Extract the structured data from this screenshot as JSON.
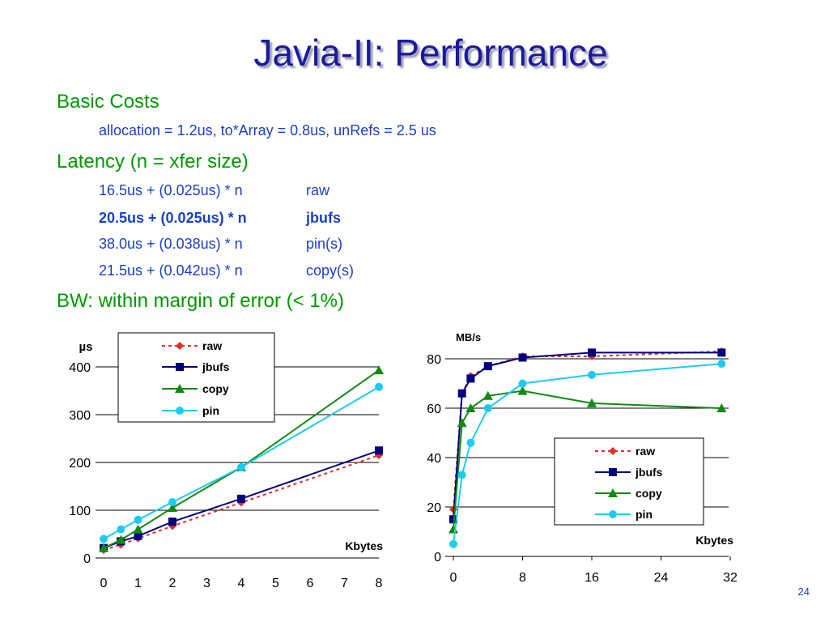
{
  "slide": {
    "title": "Javia-II: Performance",
    "page_number": "24",
    "basic_costs_heading": "Basic Costs",
    "basic_costs_detail": "allocation = 1.2us, to*Array = 0.8us, unRefs = 2.5 us",
    "latency_heading": "Latency (n = xfer size)",
    "latency_rows": [
      {
        "formula": "16.5us + (0.025us) * n",
        "label": "raw",
        "bold": false
      },
      {
        "formula": "20.5us + (0.025us) * n",
        "label": "jbufs",
        "bold": true
      },
      {
        "formula": "38.0us + (0.038us) * n",
        "label": "pin(s)",
        "bold": false
      },
      {
        "formula": "21.5us + (0.042us) * n",
        "label": "copy(s)",
        "bold": false
      }
    ],
    "bw_heading": "BW: within margin of error (< 1%)"
  },
  "colors": {
    "title": "#1a1a9e",
    "heading": "#009900",
    "sub": "#1a3fc8",
    "raw": "#e0302a",
    "jbufs": "#00007f",
    "copy": "#118a11",
    "pin": "#1ecbf0"
  },
  "chart_data": [
    {
      "type": "line",
      "ylabel": "µs",
      "xlabel": "Kbytes",
      "xlim": [
        0,
        8
      ],
      "ylim": [
        0,
        400
      ],
      "x_ticks": [
        0,
        1,
        2,
        3,
        4,
        5,
        6,
        7,
        8
      ],
      "y_ticks": [
        0,
        100,
        200,
        300,
        400
      ],
      "grid": "horizontal",
      "legend": "top-left",
      "series": [
        {
          "name": "raw",
          "key": "raw",
          "marker": "diamond",
          "dashed": true,
          "x": [
            0,
            0.5,
            1,
            2,
            4,
            8
          ],
          "y": [
            17,
            28,
            41,
            67,
            116,
            215
          ]
        },
        {
          "name": "jbufs",
          "key": "jbufs",
          "marker": "square",
          "dashed": false,
          "x": [
            0,
            0.5,
            1,
            2,
            4,
            8
          ],
          "y": [
            21,
            35,
            46,
            76,
            124,
            225
          ]
        },
        {
          "name": "copy",
          "key": "copy",
          "marker": "triangle",
          "dashed": false,
          "x": [
            0,
            0.5,
            1,
            2,
            4,
            8
          ],
          "y": [
            21,
            38,
            60,
            105,
            190,
            393
          ]
        },
        {
          "name": "pin",
          "key": "pin",
          "marker": "circle",
          "dashed": false,
          "x": [
            0,
            0.5,
            1,
            2,
            4,
            8
          ],
          "y": [
            40,
            60,
            80,
            117,
            190,
            358
          ]
        }
      ]
    },
    {
      "type": "line",
      "ylabel": "MB/s",
      "xlabel": "Kbytes",
      "xlim": [
        0,
        32
      ],
      "ylim": [
        0,
        85
      ],
      "x_ticks": [
        0,
        8,
        16,
        24,
        32
      ],
      "y_ticks": [
        0,
        20,
        40,
        60,
        80
      ],
      "grid": "horizontal",
      "legend": "bottom-right",
      "series": [
        {
          "name": "raw",
          "key": "raw",
          "marker": "diamond",
          "dashed": true,
          "x": [
            0,
            1,
            2,
            4,
            8,
            16,
            31
          ],
          "y": [
            19,
            66,
            73,
            77,
            81,
            81,
            83
          ]
        },
        {
          "name": "jbufs",
          "key": "jbufs",
          "marker": "square",
          "dashed": false,
          "x": [
            0,
            1,
            2,
            4,
            8,
            16,
            31
          ],
          "y": [
            15,
            66,
            72,
            77,
            80.5,
            82.5,
            82.5
          ]
        },
        {
          "name": "copy",
          "key": "copy",
          "marker": "triangle",
          "dashed": false,
          "x": [
            0,
            1,
            2,
            4,
            8,
            16,
            31
          ],
          "y": [
            11,
            54,
            60,
            65,
            67,
            62,
            60
          ]
        },
        {
          "name": "pin",
          "key": "pin",
          "marker": "circle",
          "dashed": false,
          "x": [
            0,
            1,
            2,
            4,
            8,
            16,
            31
          ],
          "y": [
            5,
            33,
            46,
            60,
            70,
            73.5,
            78
          ]
        }
      ]
    }
  ]
}
